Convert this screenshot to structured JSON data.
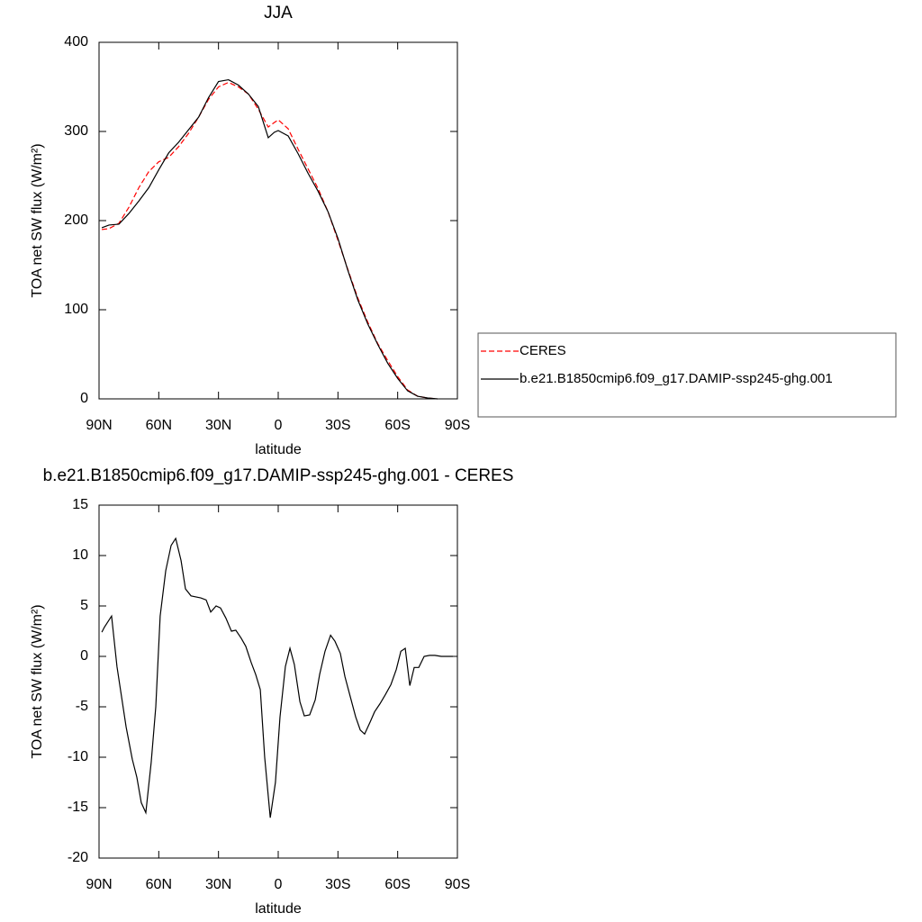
{
  "chart_data": [
    {
      "type": "line",
      "title": "JJA",
      "x_label": "latitude",
      "y_label": "TOA net SW flux (W/m²)",
      "x": [
        88.6,
        85,
        80,
        75,
        70,
        65,
        60,
        55,
        50,
        45,
        40,
        35,
        30,
        25,
        20,
        15,
        10,
        5,
        2,
        0,
        -5,
        -10,
        -15,
        -20,
        -25,
        -30,
        -35,
        -40,
        -45,
        -50,
        -55,
        -60,
        -65,
        -70,
        -75,
        -80
      ],
      "series": [
        {
          "name": "CERES",
          "color": "#ff0000",
          "line_style": "dashed",
          "values": [
            190,
            191,
            197,
            215,
            237,
            255,
            266,
            271,
            283,
            298,
            316,
            336,
            350,
            355,
            350,
            342,
            325,
            305,
            310,
            313,
            303,
            280,
            258,
            236,
            210,
            178,
            145,
            113,
            86,
            62,
            43,
            25,
            10,
            3,
            1,
            0
          ]
        },
        {
          "name": "b.e21.B1850cmip6.f09_g17.DAMIP-ssp245-ghg.001",
          "color": "#000000",
          "line_style": "solid",
          "values": [
            192,
            195,
            196,
            208,
            222,
            237,
            257,
            276,
            288,
            302,
            316,
            338,
            356,
            358,
            352,
            342,
            328,
            293,
            299,
            301,
            295,
            275,
            253,
            233,
            210,
            180,
            144,
            111,
            84,
            61,
            40,
            23,
            9,
            3,
            1,
            0
          ]
        }
      ],
      "xlim": [
        90,
        -90
      ],
      "xticks": [
        {
          "value": 90,
          "label": "90N"
        },
        {
          "value": 60,
          "label": "60N"
        },
        {
          "value": 30,
          "label": "30N"
        },
        0,
        {
          "value": -30,
          "label": "30S"
        },
        {
          "value": -60,
          "label": "60S"
        },
        {
          "value": -90,
          "label": "90S"
        }
      ],
      "ylim": [
        0,
        400
      ],
      "yticks": [
        0,
        100,
        200,
        300,
        400
      ],
      "legend": "right"
    },
    {
      "type": "line",
      "title": "b.e21.B1850cmip6.f09_g17.DAMIP-ssp245-ghg.001 - CERES",
      "x_label": "latitude",
      "y_label": "TOA net SW flux (W/m²)",
      "x": [
        88.6,
        87.3,
        83.7,
        81,
        76.4,
        73.3,
        71,
        68.8,
        66.5,
        63.8,
        61.5,
        59.3,
        56.5,
        53.8,
        51.5,
        48.8,
        46.6,
        43.8,
        38.9,
        36.2,
        33.9,
        31.2,
        29,
        26.3,
        23.5,
        21.3,
        18.6,
        16.3,
        13.6,
        11.3,
        9,
        6.8,
        4,
        1.4,
        -0.9,
        -3.6,
        -5.9,
        -8.1,
        -10.9,
        -13.1,
        -15.8,
        -18.6,
        -20.8,
        -23.5,
        -26.3,
        -28.5,
        -31.2,
        -33.5,
        -36.2,
        -38.9,
        -41.2,
        -43.4,
        -46.2,
        -48.4,
        -51.1,
        -53.8,
        -56.6,
        -59.3,
        -61.6,
        -63.8,
        -66.1,
        -68.3,
        -70.6,
        -73.3,
        -76,
        -78.7,
        -81.9,
        -87.7
      ],
      "series": [
        {
          "color": "#000000",
          "line_style": "solid",
          "values": [
            2.4,
            2.9,
            4.0,
            -1,
            -7,
            -10.2,
            -12,
            -14.5,
            -15.5,
            -10.5,
            -5,
            4,
            8.5,
            11,
            11.7,
            9.5,
            6.7,
            6,
            5.8,
            5.6,
            4.4,
            5,
            4.8,
            3.8,
            2.5,
            2.6,
            1.8,
            1,
            -0.6,
            -1.8,
            -3.3,
            -10,
            -16,
            -12.5,
            -6,
            -1,
            0.8,
            -0.8,
            -4.5,
            -5.9,
            -5.8,
            -4.3,
            -1.8,
            0.5,
            2.1,
            1.5,
            0.3,
            -2,
            -4,
            -6,
            -7.3,
            -7.7,
            -6.5,
            -5.5,
            -4.7,
            -3.8,
            -2.8,
            -1.3,
            0.5,
            0.8,
            -2.9,
            -1.1,
            -1.1,
            0,
            0.1,
            0.1,
            0,
            0
          ]
        }
      ],
      "xlim": [
        90,
        -90
      ],
      "xticks": [
        {
          "value": 90,
          "label": "90N"
        },
        {
          "value": 60,
          "label": "60N"
        },
        {
          "value": 30,
          "label": "30N"
        },
        0,
        {
          "value": -30,
          "label": "30S"
        },
        {
          "value": -60,
          "label": "60S"
        },
        {
          "value": -90,
          "label": "90S"
        }
      ],
      "ylim": [
        -20,
        15
      ],
      "yticks": [
        -20,
        -15,
        -10,
        -5,
        0,
        5,
        10,
        15
      ]
    }
  ]
}
